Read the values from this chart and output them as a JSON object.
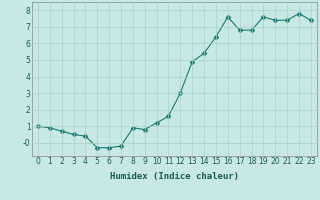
{
  "xlabel": "Humidex (Indice chaleur)",
  "x": [
    0,
    1,
    2,
    3,
    4,
    5,
    6,
    7,
    8,
    9,
    10,
    11,
    12,
    13,
    14,
    15,
    16,
    17,
    18,
    19,
    20,
    21,
    22,
    23
  ],
  "y": [
    1.0,
    0.9,
    0.7,
    0.5,
    0.4,
    -0.3,
    -0.3,
    -0.2,
    0.9,
    0.8,
    1.2,
    1.6,
    3.0,
    4.9,
    5.4,
    6.4,
    7.6,
    6.8,
    6.8,
    7.6,
    7.4,
    7.4,
    7.8,
    7.4
  ],
  "line_color": "#1a7a6e",
  "marker_color": "#1a7a6e",
  "bg_color": "#c8e8e5",
  "grid_color": "#aacfcc",
  "ylim": [
    -0.8,
    8.5
  ],
  "xlim": [
    -0.5,
    23.5
  ],
  "yticks": [
    0,
    1,
    2,
    3,
    4,
    5,
    6,
    7,
    8
  ],
  "ytick_labels": [
    "-0",
    "1",
    "2",
    "3",
    "4",
    "5",
    "6",
    "7",
    "8"
  ],
  "xticks": [
    0,
    1,
    2,
    3,
    4,
    5,
    6,
    7,
    8,
    9,
    10,
    11,
    12,
    13,
    14,
    15,
    16,
    17,
    18,
    19,
    20,
    21,
    22,
    23
  ],
  "fontsize_ticks": 5.5,
  "fontsize_xlabel": 6.5,
  "marker_size": 2.5,
  "line_width": 0.8
}
